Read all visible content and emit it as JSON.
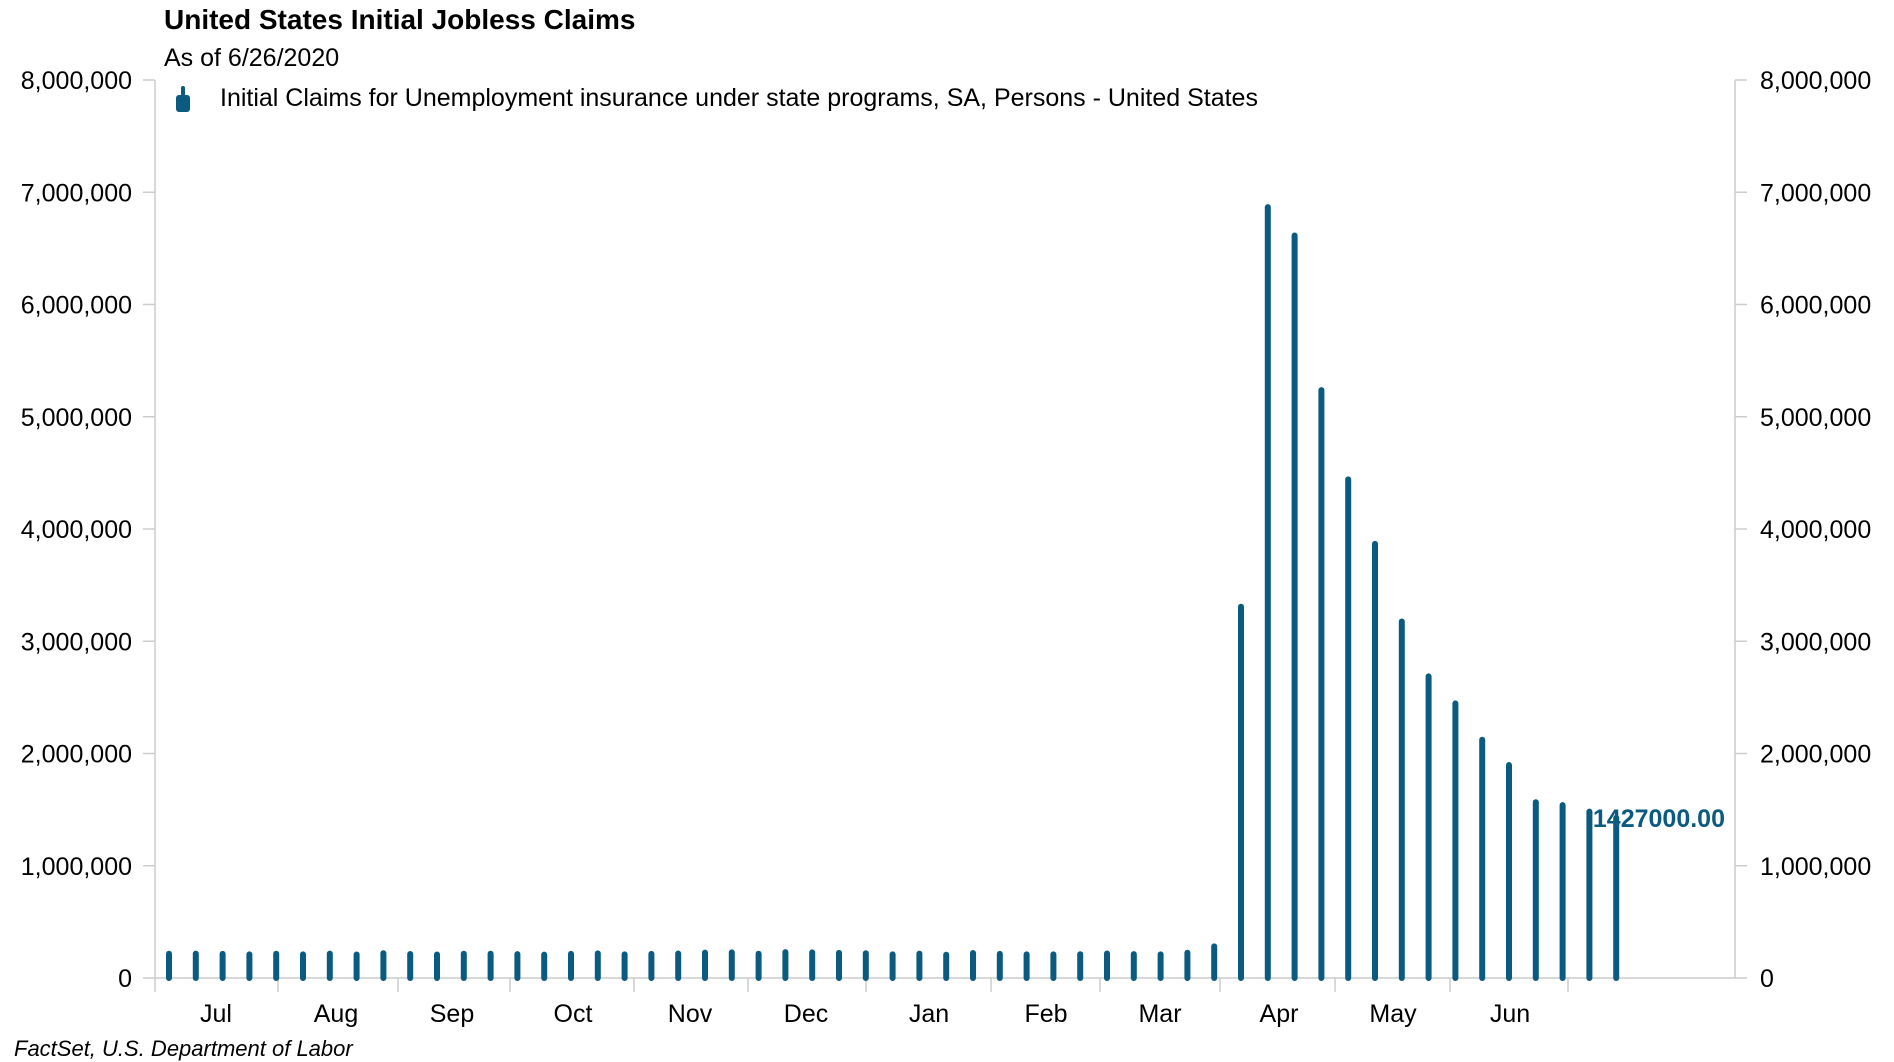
{
  "title": "United States Initial Jobless Claims",
  "subtitle": "As of 6/26/2020",
  "source": "FactSet, U.S. Department of Labor",
  "colors": {
    "series": "#0b5a80",
    "axis": "#cccccc",
    "text": "#000000"
  },
  "chart_data": {
    "type": "bar",
    "title": "United States Initial Jobless Claims",
    "subtitle": "As of 6/26/2020",
    "series": [
      {
        "name": "Initial Claims for Unemployment insurance under state programs, SA, Persons - United States",
        "values": [
          216000,
          217000,
          215000,
          211000,
          216000,
          211000,
          217000,
          209000,
          220000,
          214000,
          209000,
          216000,
          216000,
          213000,
          208000,
          215000,
          219000,
          210000,
          215000,
          218000,
          226000,
          228000,
          216000,
          230000,
          228000,
          224000,
          221000,
          211000,
          217000,
          207000,
          223000,
          215000,
          211000,
          210000,
          212000,
          218000,
          213000,
          210000,
          225000,
          282000,
          3307000,
          6867000,
          6615000,
          5237000,
          4442000,
          3867000,
          3176000,
          2687000,
          2446000,
          2123000,
          1897000,
          1566000,
          1540000,
          1482000,
          1427000
        ]
      }
    ],
    "end_label": "1427000.00",
    "xaxis": {
      "month_labels": [
        "Jul",
        "Aug",
        "Sep",
        "Oct",
        "Nov",
        "Dec",
        "Jan",
        "Feb",
        "Mar",
        "Apr",
        "May",
        "Jun"
      ]
    },
    "yaxis": {
      "min": 0,
      "max": 8000000,
      "tick_labels": [
        "0",
        "1,000,000",
        "2,000,000",
        "3,000,000",
        "4,000,000",
        "5,000,000",
        "6,000,000",
        "7,000,000",
        "8,000,000"
      ],
      "dual": true
    },
    "grid": false,
    "legend_position": "top-left"
  }
}
